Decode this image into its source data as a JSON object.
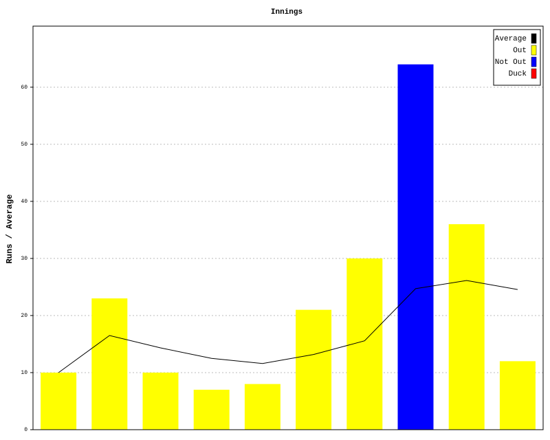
{
  "chart_data": {
    "type": "bar",
    "title": "Innings",
    "y_label": "Runs / Average",
    "categories": [
      null,
      null,
      null,
      null,
      null,
      null,
      null,
      null,
      null,
      null
    ],
    "series": [
      {
        "name": "Average",
        "type": "line",
        "color": "#000000",
        "values": [
          10,
          16.5,
          14.33,
          12.5,
          11.6,
          13.17,
          15.57,
          24.71,
          26.13,
          24.56
        ]
      },
      {
        "name": "Out",
        "color": "#ffff00",
        "values": [
          10,
          23,
          10,
          7,
          8,
          21,
          30,
          null,
          36,
          12
        ]
      },
      {
        "name": "Not Out",
        "color": "#0000ff",
        "values": [
          null,
          null,
          null,
          null,
          null,
          null,
          null,
          64,
          null,
          null
        ]
      },
      {
        "name": "Duck",
        "color": "#ff0000",
        "values": [
          null,
          null,
          null,
          null,
          null,
          null,
          null,
          null,
          null,
          null
        ]
      }
    ],
    "ylim": [
      0,
      70.7
    ],
    "yticks": [
      0,
      10,
      20,
      30,
      40,
      50,
      60
    ],
    "grid": true,
    "legend": "top-right"
  }
}
